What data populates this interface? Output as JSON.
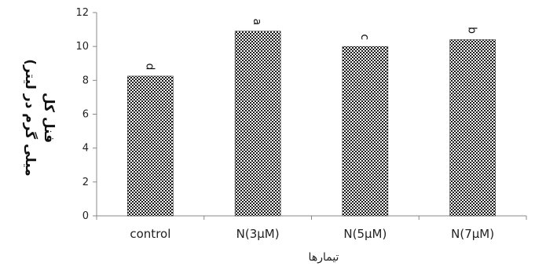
{
  "chart_data": {
    "type": "bar",
    "categories": [
      "control",
      "N(3µM)",
      "N(5µM)",
      "N(7µM)"
    ],
    "values": [
      8.25,
      10.9,
      10.0,
      10.4
    ],
    "data_labels": [
      "d",
      "a",
      "c",
      "b"
    ],
    "title": "",
    "xlabel": "تیمارها",
    "ylabel_lines": [
      "فنل کل",
      "(میلی گرم در لیتر"
    ],
    "ylim": [
      0,
      12
    ],
    "yticks": [
      0,
      2,
      4,
      6,
      8,
      10,
      12
    ],
    "grid": false,
    "legend": "none",
    "bar_pattern": "checker",
    "colors": {
      "bar_dark": "#1a1a1a",
      "bar_light": "#ffffff",
      "axis": "#888888",
      "text": "#222222"
    }
  }
}
